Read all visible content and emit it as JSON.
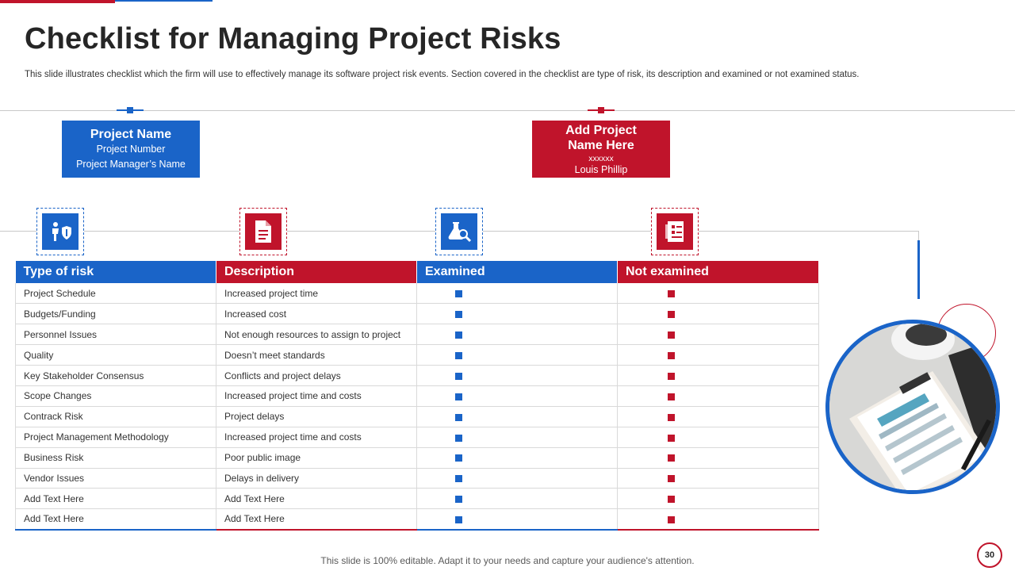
{
  "title": "Checklist for Managing Project Risks",
  "subtitle": "This slide illustrates checklist which the firm will use to effectively manage its software project risk events. Section covered in the checklist are type of risk, its description and examined or not examined status.",
  "project_box": {
    "heading": "Project Name",
    "line1": "Project Number",
    "line2": "Project Manager’s Name"
  },
  "add_project_box": {
    "heading_line1": "Add Project",
    "heading_line2": "Name Here",
    "code": "xxxxxx",
    "person": "Louis Phillip"
  },
  "icons": [
    "risk-person-shield-icon",
    "document-icon",
    "lab-flask-search-icon",
    "checklist-clipboard-icon"
  ],
  "table": {
    "headers": [
      "Type of risk",
      "Description",
      "Examined",
      "Not examined"
    ],
    "rows": [
      {
        "type": "Project Schedule",
        "description": "Increased project time"
      },
      {
        "type": "Budgets/Funding",
        "description": "Increased cost"
      },
      {
        "type": "Personnel Issues",
        "description": "Not enough resources to assign to project"
      },
      {
        "type": "Quality",
        "description": "Doesn’t meet standards"
      },
      {
        "type": "Key Stakeholder Consensus",
        "description": "Conflicts and project delays"
      },
      {
        "type": "Scope Changes",
        "description": "Increased project time and costs"
      },
      {
        "type": "Contrack Risk",
        "description": "Project delays"
      },
      {
        "type": "Project Management Methodology",
        "description": "Increased project time and costs"
      },
      {
        "type": "Business Risk",
        "description": "Poor public image"
      },
      {
        "type": "Vendor Issues",
        "description": "Delays in delivery"
      },
      {
        "type": "Add Text Here",
        "description": "Add Text Here"
      },
      {
        "type": "Add Text Here",
        "description": "Add Text Here"
      }
    ]
  },
  "colors": {
    "accent_red": "#c0142b",
    "accent_blue": "#1a64c8"
  },
  "footer": "This slide is 100% editable. Adapt it to your needs and capture your audience's attention.",
  "page_number": "30"
}
